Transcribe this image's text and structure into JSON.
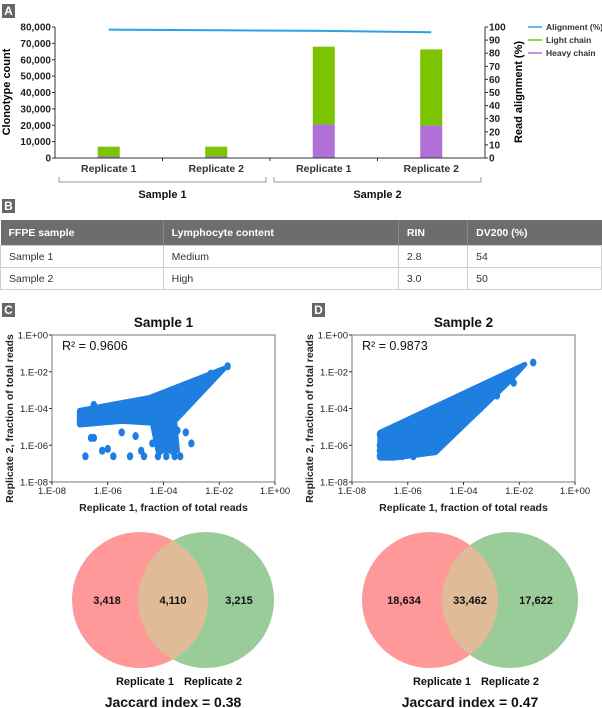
{
  "panels": {
    "a": "A",
    "b": "B",
    "c": "C",
    "d": "D"
  },
  "chart_data": [
    {
      "type": "bar",
      "panel": "A",
      "stacked": true,
      "categories": [
        "Replicate 1",
        "Replicate 2",
        "Replicate 1",
        "Replicate 2"
      ],
      "groups": [
        {
          "label": "Sample 1",
          "categories": [
            0,
            1
          ]
        },
        {
          "label": "Sample 2",
          "categories": [
            2,
            3
          ]
        }
      ],
      "series": [
        {
          "name": "Heavy chain",
          "axis": "left",
          "color": "#b070d8",
          "values": [
            900,
            900,
            20500,
            19800
          ]
        },
        {
          "name": "Light chain",
          "axis": "left",
          "color": "#7cc300",
          "values": [
            6000,
            6000,
            47500,
            46500
          ]
        },
        {
          "name": "Alignment (%)",
          "axis": "right",
          "type": "line",
          "color": "#2aa0e6",
          "values": [
            98,
            97.5,
            97,
            96
          ]
        }
      ],
      "legend_order": [
        "Alignment (%)",
        "Light chain",
        "Heavy chain"
      ],
      "legend_position": "top-right",
      "ylabel": "Clonotype count",
      "ylabel_right": "Read alignment (%)",
      "ylim": [
        0,
        80000
      ],
      "ylim_right": [
        0,
        100
      ],
      "yticks": [
        "0",
        "10,000",
        "20,000",
        "30,000",
        "40,000",
        "50,000",
        "60,000",
        "70,000",
        "80,000"
      ],
      "yticks_right": [
        "0",
        "10",
        "20",
        "30",
        "40",
        "50",
        "60",
        "70",
        "80",
        "90",
        "100"
      ]
    },
    {
      "type": "table",
      "panel": "B",
      "columns": [
        "FFPE sample",
        "Lymphocyte content",
        "RIN",
        "DV200 (%)"
      ],
      "rows": [
        [
          "Sample 1",
          "Medium",
          "2.8",
          "54"
        ],
        [
          "Sample 2",
          "High",
          "3.0",
          "50"
        ]
      ]
    },
    {
      "type": "scatter",
      "panel": "C",
      "title": "Sample 1",
      "annotation": "R² = 0.9606",
      "xlabel": "Replicate 1, fraction of total reads",
      "ylabel": "Replicate 2, fraction of total reads",
      "scale": "log10",
      "xlim_exp": [
        -8,
        0
      ],
      "ylim_exp": [
        -8,
        0
      ],
      "ticks": [
        "1.E-08",
        "1.E-06",
        "1.E-04",
        "1.E-02",
        "1.E+00"
      ],
      "color": "#1f7fe0",
      "pattern": "upper-diagonal band with wide low-count spread",
      "points_log10": [
        [
          -1.7,
          -1.7
        ],
        [
          -2.3,
          -2.1
        ],
        [
          -2.5,
          -2.3
        ],
        [
          -2.7,
          -2.5
        ],
        [
          -2.9,
          -2.7
        ],
        [
          -3.1,
          -2.9
        ],
        [
          -3.3,
          -3.0
        ],
        [
          -3.5,
          -3.2
        ],
        [
          -3.7,
          -3.3
        ],
        [
          -3.9,
          -3.4
        ],
        [
          -4.1,
          -3.5
        ],
        [
          -4.3,
          -3.6
        ],
        [
          -4.5,
          -3.7
        ],
        [
          -4.0,
          -3.8
        ],
        [
          -4.2,
          -4.0
        ],
        [
          -4.4,
          -4.1
        ],
        [
          -4.6,
          -4.2
        ],
        [
          -4.8,
          -4.3
        ],
        [
          -5.0,
          -4.3
        ],
        [
          -5.2,
          -4.4
        ],
        [
          -5.4,
          -4.4
        ],
        [
          -5.6,
          -4.4
        ],
        [
          -5.8,
          -4.5
        ],
        [
          -6.0,
          -4.5
        ],
        [
          -6.2,
          -4.5
        ],
        [
          -6.4,
          -4.5
        ],
        [
          -6.6,
          -4.5
        ],
        [
          -6.8,
          -4.6
        ],
        [
          -7.0,
          -4.6
        ],
        [
          -7.0,
          -4.2
        ],
        [
          -7.0,
          -4.4
        ],
        [
          -7.0,
          -4.8
        ],
        [
          -6.5,
          -3.8
        ],
        [
          -6.0,
          -3.9
        ],
        [
          -5.5,
          -4.0
        ],
        [
          -5.0,
          -3.9
        ],
        [
          -4.5,
          -3.5
        ],
        [
          -4.5,
          -4.5
        ],
        [
          -4.3,
          -4.8
        ],
        [
          -4.2,
          -5.0
        ],
        [
          -4.1,
          -5.3
        ],
        [
          -4.0,
          -5.5
        ],
        [
          -3.9,
          -5.8
        ],
        [
          -3.8,
          -6.0
        ],
        [
          -3.7,
          -6.3
        ],
        [
          -3.6,
          -5.6
        ],
        [
          -3.5,
          -5.2
        ],
        [
          -4.4,
          -5.9
        ],
        [
          -4.1,
          -6.3
        ],
        [
          -3.9,
          -6.6
        ],
        [
          -3.6,
          -6.6
        ],
        [
          -3.4,
          -6.6
        ],
        [
          -4.2,
          -6.6
        ],
        [
          -4.7,
          -6.6
        ],
        [
          -5.2,
          -6.6
        ],
        [
          -5.8,
          -6.6
        ],
        [
          -6.8,
          -6.6
        ],
        [
          -6.2,
          -6.3
        ],
        [
          -6.0,
          -6.2
        ],
        [
          -5.5,
          -5.3
        ],
        [
          -5.0,
          -5.5
        ],
        [
          -4.8,
          -6.3
        ],
        [
          -3.2,
          -5.3
        ],
        [
          -3.0,
          -5.9
        ],
        [
          -6.6,
          -5.6
        ],
        [
          -6.5,
          -5.6
        ]
      ]
    },
    {
      "type": "scatter",
      "panel": "D",
      "title": "Sample 2",
      "annotation": "R² = 0.9873",
      "xlabel": "Replicate 1, fraction of total reads",
      "ylabel": "Replicate 2, fraction of total reads",
      "scale": "log10",
      "xlim_exp": [
        -8,
        0
      ],
      "ylim_exp": [
        -8,
        0
      ],
      "ticks": [
        "1.E-08",
        "1.E-06",
        "1.E-04",
        "1.E-02",
        "1.E+00"
      ],
      "color": "#1f7fe0",
      "pattern": "tight diagonal band",
      "points_log10": [
        [
          -1.5,
          -1.5
        ],
        [
          -2.3,
          -2.3
        ],
        [
          -2.6,
          -2.5
        ],
        [
          -2.9,
          -2.7
        ],
        [
          -3.2,
          -3.0
        ],
        [
          -3.5,
          -3.2
        ],
        [
          -3.8,
          -3.5
        ],
        [
          -4.1,
          -3.8
        ],
        [
          -4.4,
          -4.1
        ],
        [
          -4.7,
          -4.4
        ],
        [
          -5.0,
          -4.7
        ],
        [
          -5.3,
          -5.0
        ],
        [
          -5.6,
          -5.2
        ],
        [
          -5.9,
          -5.4
        ],
        [
          -6.2,
          -5.6
        ],
        [
          -6.5,
          -5.8
        ],
        [
          -6.8,
          -5.9
        ],
        [
          -7.0,
          -6.0
        ],
        [
          -3.0,
          -3.1
        ],
        [
          -3.3,
          -3.5
        ],
        [
          -3.6,
          -3.8
        ],
        [
          -3.9,
          -4.1
        ],
        [
          -4.2,
          -4.4
        ],
        [
          -4.5,
          -4.7
        ],
        [
          -4.8,
          -5.0
        ],
        [
          -5.1,
          -5.3
        ],
        [
          -5.4,
          -5.6
        ],
        [
          -5.7,
          -5.9
        ],
        [
          -6.0,
          -6.2
        ],
        [
          -6.3,
          -6.4
        ],
        [
          -6.6,
          -6.5
        ],
        [
          -7.0,
          -6.6
        ],
        [
          -4.3,
          -3.5
        ],
        [
          -5.0,
          -4.4
        ],
        [
          -5.5,
          -4.9
        ],
        [
          -6.0,
          -5.3
        ],
        [
          -6.4,
          -5.6
        ],
        [
          -7.0,
          -5.4
        ],
        [
          -7.0,
          -6.3
        ],
        [
          -6.8,
          -6.6
        ],
        [
          -6.2,
          -6.6
        ],
        [
          -5.8,
          -6.6
        ],
        [
          -5.2,
          -6.1
        ],
        [
          -4.6,
          -5.3
        ],
        [
          -4.0,
          -4.6
        ],
        [
          -3.4,
          -4.0
        ],
        [
          -2.8,
          -3.3
        ],
        [
          -2.2,
          -2.6
        ]
      ]
    },
    {
      "type": "venn",
      "panel": "C",
      "sets": [
        "Replicate 1",
        "Replicate 2"
      ],
      "values": {
        "only_a": "3,418",
        "both": "4,110",
        "only_b": "3,215"
      },
      "caption": "Jaccard index = 0.38",
      "colors": {
        "a": "#ff9999",
        "b": "#99cc99",
        "both": "#e0bb98"
      }
    },
    {
      "type": "venn",
      "panel": "D",
      "sets": [
        "Replicate 1",
        "Replicate 2"
      ],
      "values": {
        "only_a": "18,634",
        "both": "33,462",
        "only_b": "17,622"
      },
      "caption": "Jaccard index = 0.47",
      "colors": {
        "a": "#ff9999",
        "b": "#99cc99",
        "both": "#e0bb98"
      }
    }
  ]
}
